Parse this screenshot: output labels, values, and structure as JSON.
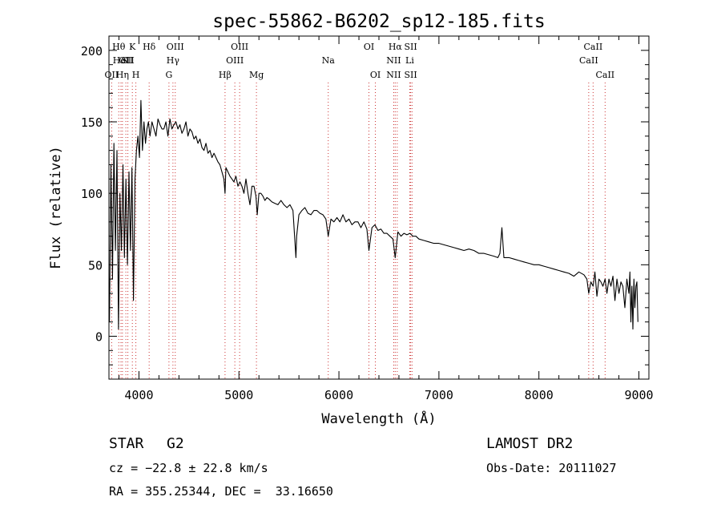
{
  "chart_data": {
    "type": "line",
    "title": "spec-55862-B6202_sp12-185.fits",
    "xlabel": "Wavelength (Å)",
    "ylabel": "Flux (relative)",
    "xlim": [
      3700,
      9100
    ],
    "ylim": [
      -30,
      210
    ],
    "xticks": [
      "4000",
      "5000",
      "6000",
      "7000",
      "8000",
      "9000"
    ],
    "yticks": [
      "0",
      "50",
      "100",
      "150",
      "200"
    ],
    "grid": false,
    "series": [
      {
        "x": [
          3705,
          3720,
          3735,
          3750,
          3765,
          3780,
          3795,
          3810,
          3825,
          3840,
          3855,
          3870,
          3885,
          3900,
          3915,
          3930,
          3945,
          3960,
          3975,
          3990,
          4005,
          4020,
          4035,
          4050,
          4065,
          4080,
          4095,
          4110,
          4130,
          4150,
          4170,
          4190,
          4210,
          4230,
          4250,
          4270,
          4290,
          4310,
          4330,
          4350,
          4370,
          4390,
          4410,
          4430,
          4450,
          4470,
          4490,
          4510,
          4530,
          4550,
          4570,
          4590,
          4610,
          4630,
          4650,
          4670,
          4690,
          4710,
          4730,
          4750,
          4770,
          4790,
          4810,
          4830,
          4850,
          4861,
          4870,
          4890,
          4910,
          4930,
          4950,
          4970,
          4990,
          5010,
          5030,
          5050,
          5070,
          5090,
          5110,
          5130,
          5150,
          5170,
          5183,
          5200,
          5220,
          5240,
          5260,
          5280,
          5300,
          5330,
          5360,
          5390,
          5420,
          5450,
          5480,
          5510,
          5540,
          5570,
          5577,
          5600,
          5630,
          5660,
          5690,
          5720,
          5750,
          5780,
          5810,
          5840,
          5870,
          5893,
          5920,
          5950,
          5980,
          6010,
          6040,
          6070,
          6100,
          6130,
          6160,
          6190,
          6220,
          6250,
          6280,
          6300,
          6330,
          6360,
          6390,
          6420,
          6450,
          6480,
          6510,
          6540,
          6563,
          6590,
          6620,
          6650,
          6680,
          6710,
          6740,
          6770,
          6800,
          6850,
          6900,
          6950,
          7000,
          7050,
          7100,
          7150,
          7200,
          7250,
          7300,
          7350,
          7400,
          7450,
          7500,
          7550,
          7590,
          7610,
          7630,
          7650,
          7700,
          7750,
          7800,
          7850,
          7900,
          7950,
          8000,
          8050,
          8100,
          8150,
          8200,
          8250,
          8300,
          8350,
          8400,
          8450,
          8480,
          8498,
          8520,
          8542,
          8560,
          8580,
          8600,
          8620,
          8640,
          8662,
          8680,
          8700,
          8720,
          8740,
          8760,
          8780,
          8800,
          8820,
          8840,
          8860,
          8880,
          8900,
          8910,
          8920,
          8930,
          8940,
          8950,
          8960,
          8970,
          8980,
          8990
        ],
        "y": [
          10,
          120,
          40,
          135,
          60,
          130,
          5,
          100,
          60,
          120,
          55,
          110,
          50,
          115,
          60,
          118,
          25,
          110,
          130,
          140,
          125,
          165,
          130,
          150,
          135,
          145,
          150,
          140,
          150,
          145,
          140,
          152,
          148,
          145,
          145,
          150,
          140,
          152,
          145,
          148,
          150,
          145,
          148,
          142,
          145,
          150,
          140,
          145,
          143,
          138,
          140,
          135,
          138,
          132,
          130,
          135,
          128,
          130,
          125,
          128,
          125,
          122,
          120,
          115,
          110,
          100,
          118,
          115,
          112,
          110,
          108,
          112,
          105,
          108,
          105,
          100,
          110,
          100,
          92,
          105,
          105,
          98,
          85,
          100,
          100,
          98,
          95,
          97,
          96,
          94,
          93,
          92,
          95,
          92,
          90,
          92,
          88,
          55,
          70,
          85,
          88,
          90,
          86,
          85,
          88,
          88,
          86,
          85,
          82,
          70,
          82,
          80,
          83,
          80,
          85,
          80,
          82,
          78,
          80,
          80,
          76,
          80,
          75,
          60,
          76,
          78,
          74,
          75,
          72,
          72,
          70,
          68,
          55,
          73,
          70,
          72,
          71,
          72,
          70,
          70,
          68,
          67,
          66,
          65,
          65,
          64,
          63,
          62,
          61,
          60,
          61,
          60,
          58,
          58,
          57,
          56,
          55,
          58,
          76,
          55,
          55,
          54,
          53,
          52,
          51,
          50,
          50,
          49,
          48,
          47,
          46,
          45,
          44,
          42,
          45,
          43,
          40,
          30,
          38,
          35,
          45,
          28,
          40,
          38,
          35,
          40,
          30,
          40,
          35,
          42,
          25,
          40,
          30,
          38,
          35,
          20,
          40,
          30,
          45,
          10,
          35,
          5,
          40,
          20,
          35,
          38,
          10
        ]
      }
    ],
    "lines": [
      {
        "wl": 3727,
        "labels": [
          {
            "t": "OII",
            "r": 3
          }
        ]
      },
      {
        "wl": 3798,
        "labels": [
          {
            "t": "Hθ",
            "r": 1
          }
        ]
      },
      {
        "wl": 3820,
        "labels": [
          {
            "t": "HeI",
            "r": 2
          }
        ]
      },
      {
        "wl": 3835,
        "labels": [
          {
            "t": "Hη",
            "r": 3
          }
        ]
      },
      {
        "wl": 3869,
        "labels": [
          {
            "t": "OII",
            "r": 2
          }
        ]
      },
      {
        "wl": 3889,
        "labels": [
          {
            "t": "SII",
            "r": 2
          }
        ]
      },
      {
        "wl": 3934,
        "labels": [
          {
            "t": "K",
            "r": 1
          }
        ]
      },
      {
        "wl": 3969,
        "labels": [
          {
            "t": "H",
            "r": 3
          }
        ]
      },
      {
        "wl": 4102,
        "labels": [
          {
            "t": "Hδ",
            "r": 1
          }
        ]
      },
      {
        "wl": 4300,
        "labels": [
          {
            "t": "G",
            "r": 3
          }
        ]
      },
      {
        "wl": 4340,
        "labels": [
          {
            "t": "Hγ",
            "r": 2
          }
        ]
      },
      {
        "wl": 4363,
        "labels": [
          {
            "t": "OIII",
            "r": 1
          }
        ]
      },
      {
        "wl": 4861,
        "labels": [
          {
            "t": "Hβ",
            "r": 3
          }
        ]
      },
      {
        "wl": 4959,
        "labels": [
          {
            "t": "OIII",
            "r": 2
          }
        ]
      },
      {
        "wl": 5007,
        "labels": [
          {
            "t": "OIII",
            "r": 1
          }
        ]
      },
      {
        "wl": 5175,
        "labels": [
          {
            "t": "Mg",
            "r": 3
          }
        ]
      },
      {
        "wl": 5893,
        "labels": [
          {
            "t": "Na",
            "r": 2
          }
        ]
      },
      {
        "wl": 6300,
        "labels": [
          {
            "t": "OI",
            "r": 1
          }
        ]
      },
      {
        "wl": 6364,
        "labels": [
          {
            "t": "OI",
            "r": 3
          }
        ]
      },
      {
        "wl": 6548,
        "labels": [
          {
            "t": "NII",
            "r": 2
          },
          {
            "t": "NII",
            "r": 3
          }
        ]
      },
      {
        "wl": 6563,
        "labels": [
          {
            "t": "Hα",
            "r": 1
          }
        ]
      },
      {
        "wl": 6583,
        "labels": []
      },
      {
        "wl": 6708,
        "labels": [
          {
            "t": "Li",
            "r": 2
          }
        ]
      },
      {
        "wl": 6717,
        "labels": [
          {
            "t": "SII",
            "r": 1
          },
          {
            "t": "SII",
            "r": 3
          }
        ]
      },
      {
        "wl": 6731,
        "labels": []
      },
      {
        "wl": 8498,
        "labels": [
          {
            "t": "CaII",
            "r": 2
          }
        ]
      },
      {
        "wl": 8542,
        "labels": [
          {
            "t": "CaII",
            "r": 1
          }
        ]
      },
      {
        "wl": 8662,
        "labels": [
          {
            "t": "CaII",
            "r": 3
          }
        ]
      }
    ]
  },
  "info": {
    "object_class": "STAR",
    "subclass": "G2",
    "survey": "LAMOST DR2",
    "cz": "cz = −22.8 ± 22.8 km/s",
    "obs_date": "Obs-Date: 20111027",
    "coords": "RA = 355.25344, DEC =  33.16650"
  }
}
